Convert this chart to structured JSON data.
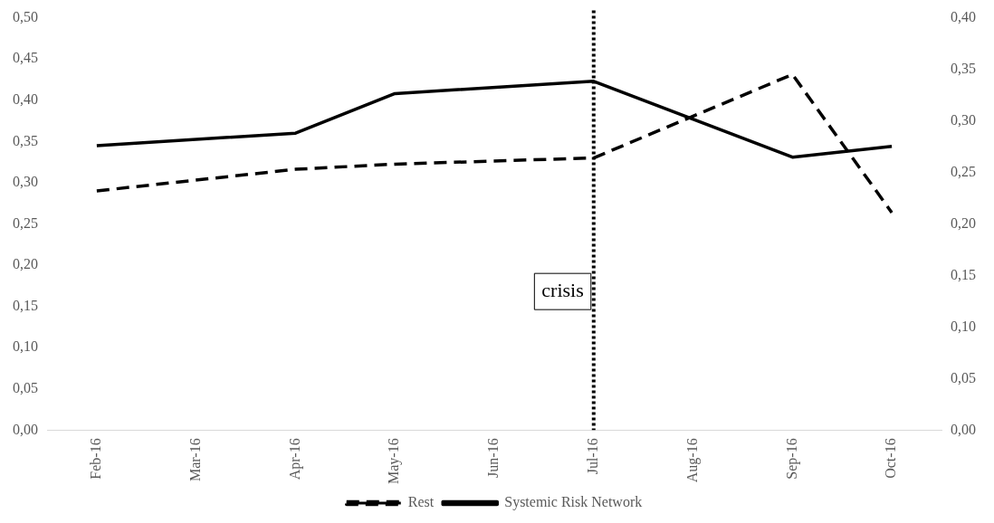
{
  "chart_data": {
    "type": "line",
    "categories": [
      "Feb-16",
      "Mar-16",
      "Apr-16",
      "May-16",
      "Jun-16",
      "Jul-16",
      "Aug-16",
      "Sep-16",
      "Oct-16"
    ],
    "series": [
      {
        "name": "Rest",
        "color": "#000000",
        "axis": "y2",
        "line_style": "dashed",
        "values": [
          0.232,
          null,
          0.253,
          0.258,
          null,
          0.264,
          null,
          0.345,
          0.211
        ]
      },
      {
        "name": "Systemic Risk Network",
        "color": "#000000",
        "line_style": "solid",
        "values": [
          0.345,
          null,
          0.36,
          0.408,
          null,
          0.423,
          null,
          0.331,
          0.344
        ]
      }
    ],
    "ylim": [
      0,
      0.5
    ],
    "yticks": [
      {
        "value": 0,
        "label": "0,00"
      },
      {
        "value": 0.05,
        "label": "0,05"
      },
      {
        "value": 0.1,
        "label": "0,10"
      },
      {
        "value": 0.15,
        "label": "0,15"
      },
      {
        "value": 0.2,
        "label": "0,20"
      },
      {
        "value": 0.25,
        "label": "0,25"
      },
      {
        "value": 0.3,
        "label": "0,30"
      },
      {
        "value": 0.35,
        "label": "0,35"
      },
      {
        "value": 0.4,
        "label": "0,40"
      },
      {
        "value": 0.45,
        "label": "0,45"
      },
      {
        "value": 0.5,
        "label": "0,50"
      }
    ],
    "y2lim": [
      0,
      0.4
    ],
    "y2ticks": [
      {
        "value": 0,
        "label": "0,00"
      },
      {
        "value": 0.05,
        "label": "0,05"
      },
      {
        "value": 0.1,
        "label": "0,10"
      },
      {
        "value": 0.15,
        "label": "0,15"
      },
      {
        "value": 0.2,
        "label": "0,20"
      },
      {
        "value": 0.25,
        "label": "0,25"
      },
      {
        "value": 0.3,
        "label": "0,30"
      },
      {
        "value": 0.35,
        "label": "0,35"
      },
      {
        "value": 0.4,
        "label": "0,40"
      }
    ],
    "ref_lines": [
      {
        "axis": "x",
        "value": "Jul-16",
        "label": "crisis",
        "line_style": "dotted",
        "color": "#000000"
      }
    ],
    "grid": false,
    "legend": "bottom",
    "marker": "none"
  }
}
